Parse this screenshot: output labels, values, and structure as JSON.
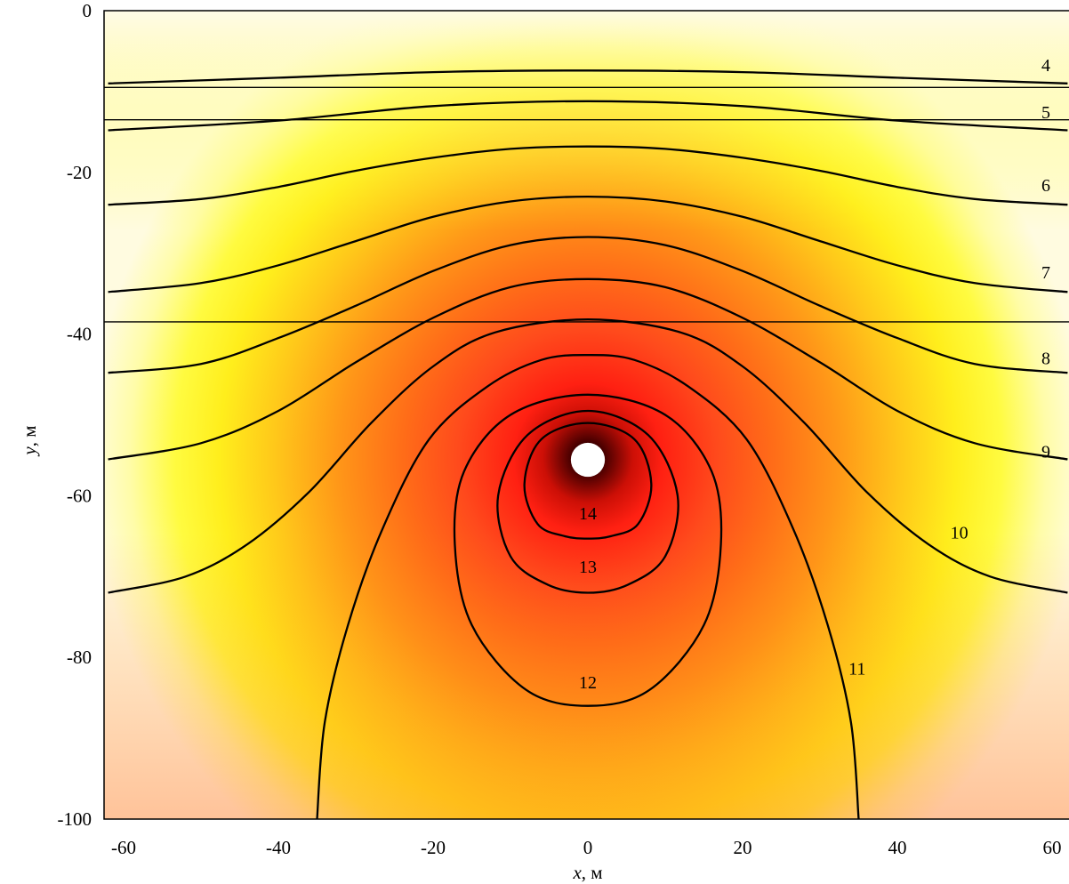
{
  "chart_data": {
    "type": "heatmap",
    "xlabel_var": "x",
    "xlabel_unit": ", м",
    "ylabel_var": "y",
    "ylabel_unit": ", м",
    "xlim": [
      -62,
      62
    ],
    "ylim": [
      -100,
      0
    ],
    "xticks": [
      -60,
      -40,
      -20,
      0,
      20,
      40,
      60
    ],
    "yticks": [
      0,
      -20,
      -40,
      -60,
      -80,
      -100
    ],
    "layer_boundaries_y": [
      -9.5,
      -13.5,
      -38.5
    ],
    "source": {
      "x": 0,
      "y": -56,
      "radius": 2.2
    },
    "colorscale": [
      "#fffbd8",
      "#ffff1e",
      "#ffa51a",
      "#ff5020",
      "#ff1a10",
      "#000000"
    ],
    "contours": [
      {
        "level": "4",
        "label_x": 59.2,
        "label_y": -7.0,
        "points": [
          [
            -62,
            -9.0
          ],
          [
            -40,
            -8.3
          ],
          [
            -20,
            -7.6
          ],
          [
            0,
            -7.4
          ],
          [
            20,
            -7.6
          ],
          [
            40,
            -8.3
          ],
          [
            62,
            -9.0
          ]
        ]
      },
      {
        "level": "5",
        "label_x": 59.2,
        "label_y": -12.8,
        "points": [
          [
            -62,
            -14.8
          ],
          [
            -40,
            -13.6
          ],
          [
            -20,
            -11.8
          ],
          [
            0,
            -11.2
          ],
          [
            20,
            -11.8
          ],
          [
            40,
            -13.6
          ],
          [
            62,
            -14.8
          ]
        ]
      },
      {
        "level": "6",
        "label_x": 59.2,
        "label_y": -21.8,
        "points": [
          [
            -62,
            -24.0
          ],
          [
            -50,
            -23.3
          ],
          [
            -40,
            -21.8
          ],
          [
            -30,
            -19.8
          ],
          [
            -20,
            -18.2
          ],
          [
            -10,
            -17.1
          ],
          [
            0,
            -16.8
          ],
          [
            10,
            -17.1
          ],
          [
            20,
            -18.2
          ],
          [
            30,
            -19.8
          ],
          [
            40,
            -21.8
          ],
          [
            50,
            -23.3
          ],
          [
            62,
            -24.0
          ]
        ]
      },
      {
        "level": "7",
        "label_x": 59.2,
        "label_y": -32.6,
        "points": [
          [
            -62,
            -34.8
          ],
          [
            -50,
            -33.7
          ],
          [
            -40,
            -31.5
          ],
          [
            -30,
            -28.5
          ],
          [
            -20,
            -25.5
          ],
          [
            -10,
            -23.6
          ],
          [
            0,
            -23.0
          ],
          [
            10,
            -23.6
          ],
          [
            20,
            -25.5
          ],
          [
            30,
            -28.5
          ],
          [
            40,
            -31.5
          ],
          [
            50,
            -33.7
          ],
          [
            62,
            -34.8
          ]
        ]
      },
      {
        "level": "8",
        "label_x": 59.2,
        "label_y": -43.2,
        "points": [
          [
            -62,
            -44.8
          ],
          [
            -50,
            -43.7
          ],
          [
            -40,
            -40.5
          ],
          [
            -30,
            -36.5
          ],
          [
            -20,
            -32.2
          ],
          [
            -10,
            -29.0
          ],
          [
            0,
            -28.0
          ],
          [
            10,
            -29.0
          ],
          [
            20,
            -32.2
          ],
          [
            30,
            -36.5
          ],
          [
            40,
            -40.5
          ],
          [
            50,
            -43.7
          ],
          [
            62,
            -44.8
          ]
        ]
      },
      {
        "level": "9",
        "label_x": 59.2,
        "label_y": -54.8,
        "points": [
          [
            -62,
            -55.5
          ],
          [
            -50,
            -53.5
          ],
          [
            -40,
            -49.5
          ],
          [
            -30,
            -43.5
          ],
          [
            -20,
            -38.0
          ],
          [
            -10,
            -34.2
          ],
          [
            0,
            -33.2
          ],
          [
            10,
            -34.2
          ],
          [
            20,
            -38.0
          ],
          [
            30,
            -43.5
          ],
          [
            40,
            -49.5
          ],
          [
            50,
            -53.5
          ],
          [
            62,
            -55.5
          ]
        ]
      },
      {
        "level": "10",
        "label_x": 48.0,
        "label_y": -64.8,
        "points": [
          [
            -62,
            -72.0
          ],
          [
            -52,
            -70.0
          ],
          [
            -44,
            -66.0
          ],
          [
            -36,
            -59.5
          ],
          [
            -28,
            -51.0
          ],
          [
            -20,
            -44.0
          ],
          [
            -12,
            -39.8
          ],
          [
            0,
            -38.2
          ],
          [
            12,
            -39.8
          ],
          [
            20,
            -44.0
          ],
          [
            28,
            -51.0
          ],
          [
            36,
            -59.5
          ],
          [
            44,
            -66.0
          ],
          [
            52,
            -70.0
          ],
          [
            62,
            -72.0
          ]
        ]
      },
      {
        "level": "11",
        "label_x": 34.8,
        "label_y": -81.6,
        "points": [
          [
            -35.0,
            -100
          ],
          [
            -34.0,
            -88
          ],
          [
            -31.0,
            -76
          ],
          [
            -26.5,
            -64
          ],
          [
            -20.5,
            -53
          ],
          [
            -13,
            -46.5
          ],
          [
            -6,
            -43.2
          ],
          [
            0,
            -42.6
          ],
          [
            6,
            -43.2
          ],
          [
            13,
            -46.5
          ],
          [
            20.5,
            -53
          ],
          [
            26.5,
            -64
          ],
          [
            31.0,
            -76
          ],
          [
            34.0,
            -88
          ],
          [
            35.0,
            -100
          ]
        ]
      },
      {
        "level": "12",
        "label_x": 0,
        "label_y": -83.3,
        "closed": true,
        "points": [
          [
            0,
            -47.5
          ],
          [
            10,
            -50.0
          ],
          [
            16,
            -57.0
          ],
          [
            17.2,
            -66.0
          ],
          [
            15,
            -76.0
          ],
          [
            8,
            -84.0
          ],
          [
            0,
            -86.0
          ],
          [
            -8,
            -84.0
          ],
          [
            -15,
            -76.0
          ],
          [
            -17.2,
            -66.0
          ],
          [
            -16,
            -57.0
          ],
          [
            -10,
            -50.0
          ]
        ]
      },
      {
        "level": "13",
        "label_x": 0,
        "label_y": -69.0,
        "closed": true,
        "points": [
          [
            0,
            -49.5
          ],
          [
            7.8,
            -52.5
          ],
          [
            11.6,
            -60.0
          ],
          [
            10.0,
            -67.5
          ],
          [
            5.2,
            -71.0
          ],
          [
            0,
            -72.0
          ],
          [
            -5.2,
            -71.0
          ],
          [
            -10.0,
            -67.5
          ],
          [
            -11.6,
            -60.0
          ],
          [
            -7.8,
            -52.5
          ]
        ]
      },
      {
        "level": "14",
        "label_x": 0,
        "label_y": -62.4,
        "closed": true,
        "points": [
          [
            0,
            -51.0
          ],
          [
            6.0,
            -53.0
          ],
          [
            8.2,
            -58.5
          ],
          [
            6.5,
            -63.5
          ],
          [
            3.0,
            -65.0
          ],
          [
            0,
            -65.3
          ],
          [
            -3.0,
            -65.0
          ],
          [
            -6.5,
            -63.5
          ],
          [
            -8.2,
            -58.5
          ],
          [
            -6.0,
            -53.0
          ]
        ]
      }
    ]
  }
}
